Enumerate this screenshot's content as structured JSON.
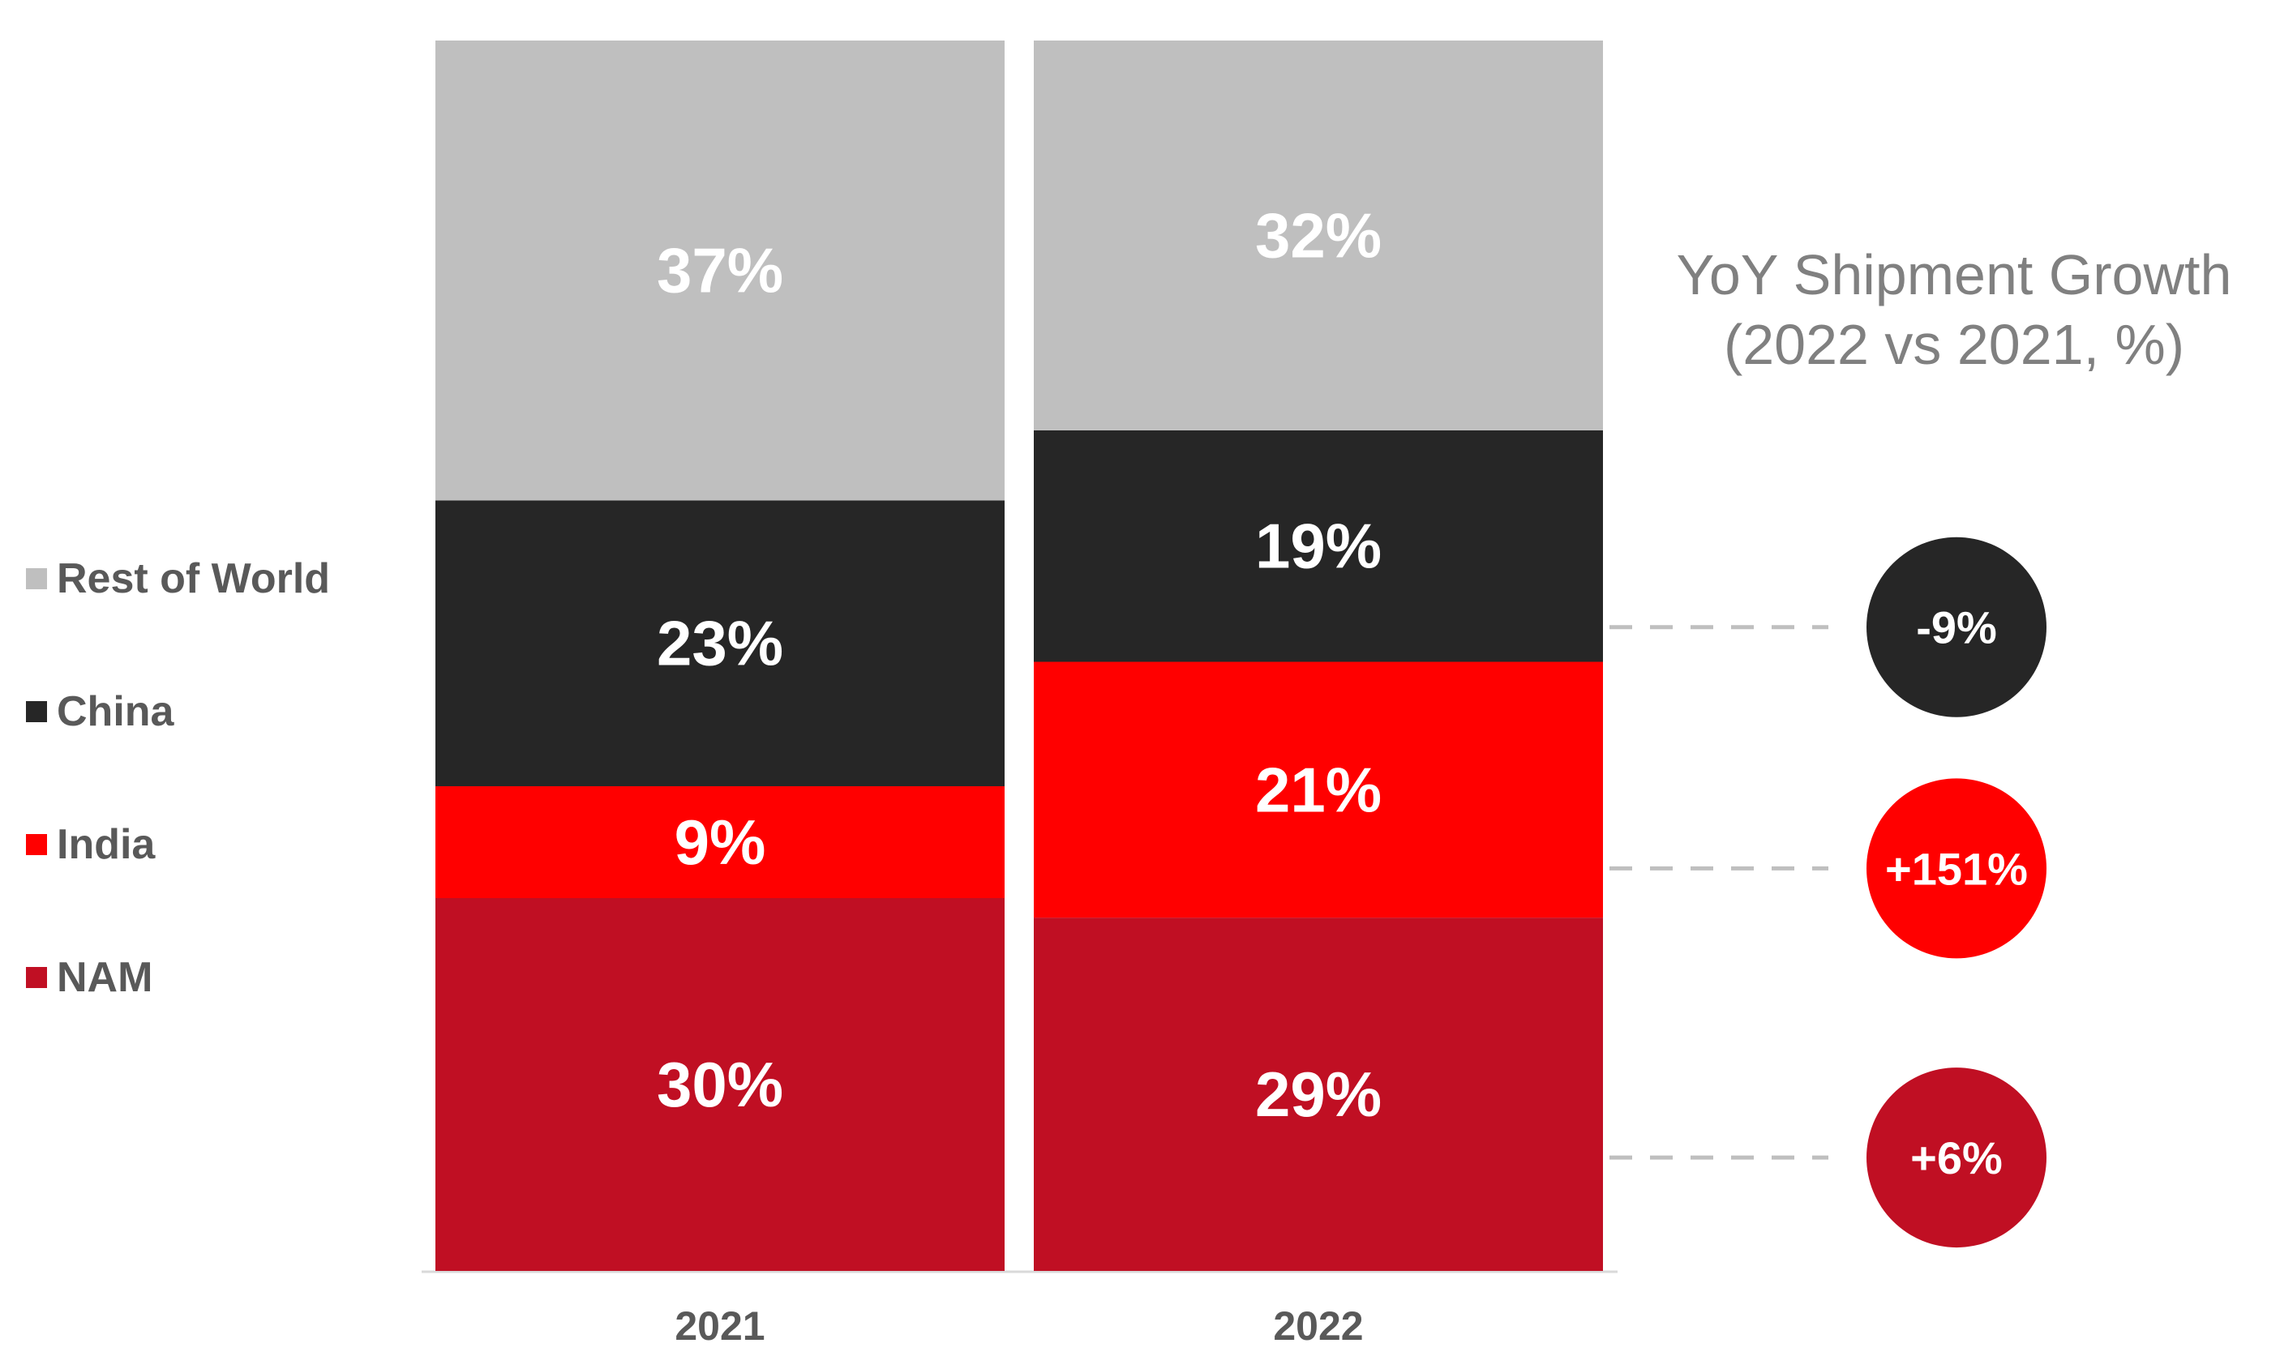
{
  "chart_data": {
    "type": "bar",
    "stacked": true,
    "categories": [
      "2021",
      "2022"
    ],
    "series": [
      {
        "name": "NAM",
        "values": [
          30,
          29
        ],
        "labels": [
          "30%",
          "29%"
        ],
        "color": "#C00F23"
      },
      {
        "name": "India",
        "values": [
          9,
          21
        ],
        "labels": [
          "9%",
          "21%"
        ],
        "color": "#FF0000"
      },
      {
        "name": "China",
        "values": [
          23,
          19
        ],
        "labels": [
          "23%",
          "19%"
        ],
        "color": "#262626"
      },
      {
        "name": "Rest of World",
        "values": [
          37,
          32
        ],
        "labels": [
          "37%",
          "32%"
        ],
        "color": "#BFBFBF"
      }
    ],
    "ylim": [
      0,
      100
    ],
    "grid": false,
    "legend_placement": "left",
    "legend_order": [
      "Rest of World",
      "China",
      "India",
      "NAM"
    ]
  },
  "growth": {
    "title_line1": "YoY Shipment Growth",
    "title_line2": "(2022 vs 2021, %)",
    "items": [
      {
        "series": "China",
        "label": "-9%",
        "color": "#262626"
      },
      {
        "series": "India",
        "label": "+151%",
        "color": "#FF0000"
      },
      {
        "series": "NAM",
        "label": "+6%",
        "color": "#C00F23"
      }
    ]
  }
}
